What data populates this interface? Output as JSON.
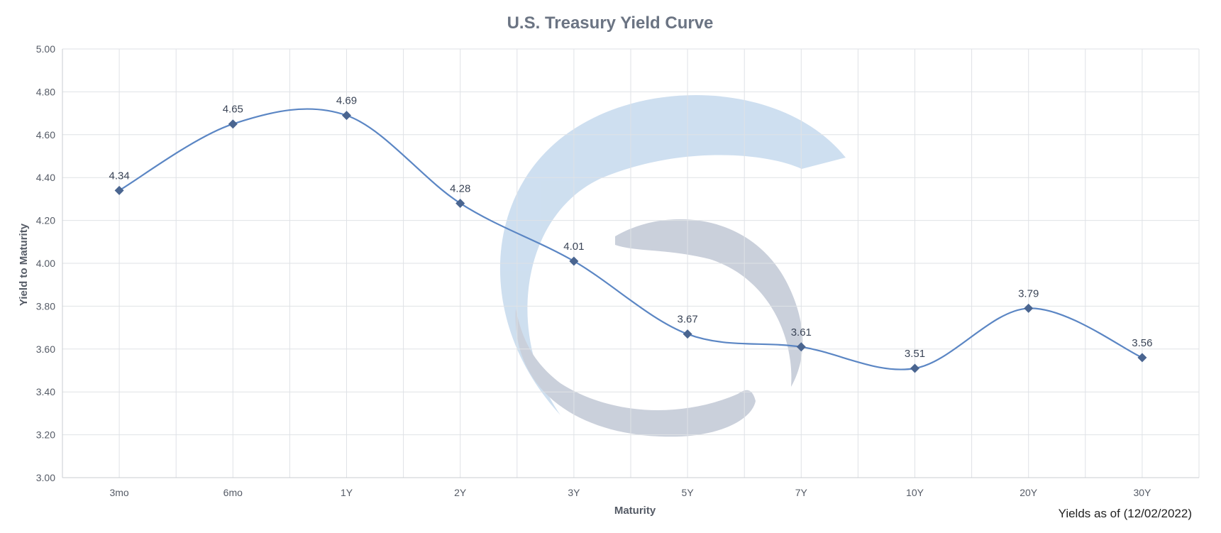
{
  "chart_data": {
    "type": "line",
    "title": "U.S. Treasury Yield Curve",
    "xlabel": "Maturity",
    "ylabel": "Yield to Maturity",
    "categories": [
      "3mo",
      "6mo",
      "1Y",
      "2Y",
      "3Y",
      "5Y",
      "7Y",
      "10Y",
      "20Y",
      "30Y"
    ],
    "series": [
      {
        "values": [
          4.34,
          4.65,
          4.69,
          4.28,
          4.01,
          3.67,
          3.61,
          3.51,
          3.79,
          3.56
        ]
      }
    ],
    "data_labels": [
      "4.34",
      "4.65",
      "4.69",
      "4.28",
      "4.01",
      "3.67",
      "3.61",
      "3.51",
      "3.79",
      "3.56"
    ],
    "yticks": [
      "3.00",
      "3.20",
      "3.40",
      "3.60",
      "3.80",
      "4.00",
      "4.20",
      "4.40",
      "4.60",
      "4.80",
      "5.00"
    ],
    "ylim": [
      3.0,
      5.0
    ],
    "grid": true,
    "smooth": true,
    "marker": "diamond",
    "line_color": "#5b86c4",
    "marker_color": "#4a6590",
    "footnote": "Yields as of (12/02/2022)",
    "watermark": "logo"
  }
}
